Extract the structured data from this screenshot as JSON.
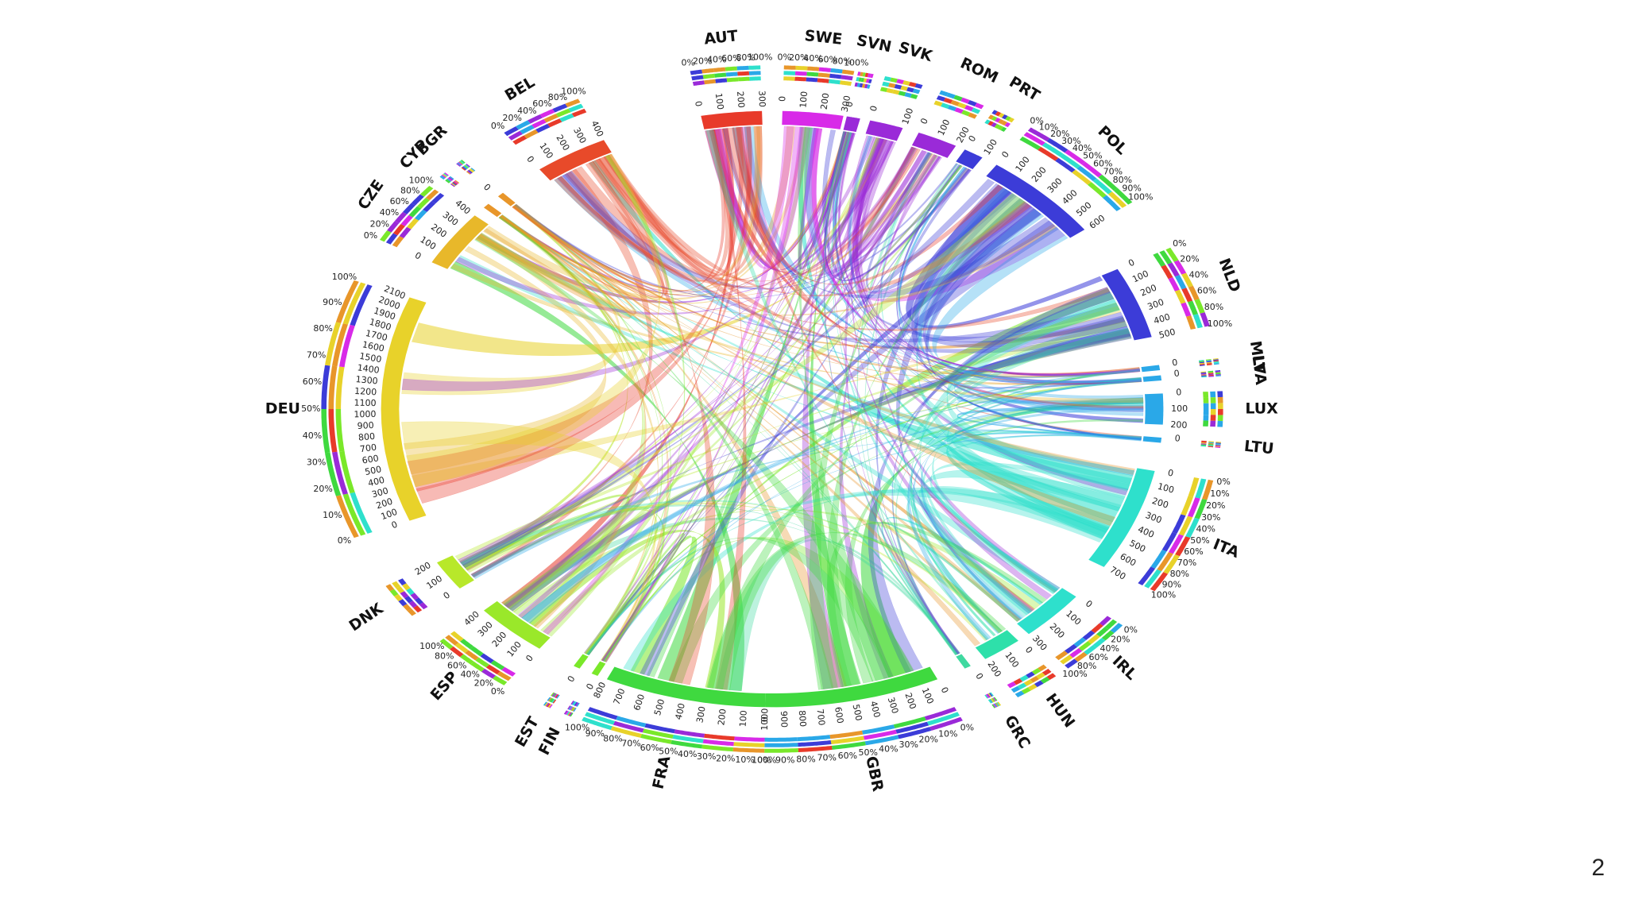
{
  "slide_number": "2",
  "palette": [
    "#e8d22a",
    "#3c3cd8",
    "#2ee0cc",
    "#3fd93f",
    "#e83a2a",
    "#9a2ad8",
    "#d82ae8",
    "#2aa8e8",
    "#7ae82a",
    "#e8962a"
  ],
  "chord_data": {
    "type": "chord",
    "groups": [
      {
        "name": "AUT",
        "ticks": [
          "0",
          "100",
          "200",
          "300"
        ],
        "color": "#e83a2a"
      },
      {
        "name": "SWE",
        "ticks": [
          "0",
          "100",
          "200",
          "300"
        ],
        "color": "#d82ae8"
      },
      {
        "name": "SVN",
        "ticks": [
          "0"
        ],
        "color": "#9a2ad8"
      },
      {
        "name": "SVK",
        "ticks": [
          "0",
          "100"
        ],
        "color": "#9a2ad8"
      },
      {
        "name": "ROM",
        "ticks": [
          "0",
          "100",
          "200"
        ],
        "color": "#9a2ad8"
      },
      {
        "name": "PRT",
        "ticks": [
          "0",
          "100"
        ],
        "color": "#3c3cd8"
      },
      {
        "name": "POL",
        "ticks": [
          "0",
          "100",
          "200",
          "300",
          "400",
          "500",
          "600"
        ],
        "color": "#3c3cd8"
      },
      {
        "name": "NLD",
        "ticks": [
          "0",
          "100",
          "200",
          "300",
          "400",
          "500"
        ],
        "color": "#3c3cd8"
      },
      {
        "name": "MLT",
        "ticks": [
          "0"
        ],
        "color": "#2aa8e8"
      },
      {
        "name": "LVA",
        "ticks": [
          "0"
        ],
        "color": "#2aa8e8"
      },
      {
        "name": "LUX",
        "ticks": [
          "0",
          "100",
          "200"
        ],
        "color": "#2aa8e8"
      },
      {
        "name": "LTU",
        "ticks": [
          "0"
        ],
        "color": "#2aa8e8"
      },
      {
        "name": "ITA",
        "ticks": [
          "0",
          "100",
          "200",
          "300",
          "400",
          "500",
          "600",
          "700"
        ],
        "color": "#2ee0cc"
      },
      {
        "name": "IRL",
        "ticks": [
          "0",
          "100",
          "200",
          "300"
        ],
        "color": "#2ee0cc"
      },
      {
        "name": "HUN",
        "ticks": [
          "0",
          "100",
          "200"
        ],
        "color": "#2ee0aa"
      },
      {
        "name": "GRC",
        "ticks": [
          "0"
        ],
        "color": "#3fd9a0"
      },
      {
        "name": "GBR",
        "ticks": [
          "0",
          "100",
          "200",
          "300",
          "400",
          "500",
          "600",
          "700",
          "800",
          "900",
          "1000"
        ],
        "color": "#3fd93f"
      },
      {
        "name": "FRA",
        "ticks": [
          "0",
          "100",
          "200",
          "300",
          "400",
          "500",
          "600",
          "700",
          "800"
        ],
        "color": "#3fd93f"
      },
      {
        "name": "FIN",
        "ticks": [
          "0"
        ],
        "color": "#7ae82a"
      },
      {
        "name": "EST",
        "ticks": [
          "0"
        ],
        "color": "#7ae82a"
      },
      {
        "name": "ESP",
        "ticks": [
          "0",
          "100",
          "200",
          "300",
          "400"
        ],
        "color": "#9ae82a"
      },
      {
        "name": "DNK",
        "ticks": [
          "0",
          "100",
          "200"
        ],
        "color": "#b8e82a"
      },
      {
        "name": "DEU",
        "ticks": [
          "0",
          "100",
          "200",
          "300",
          "400",
          "500",
          "600",
          "700",
          "800",
          "900",
          "1000",
          "1100",
          "1200",
          "1300",
          "1400",
          "1500",
          "1600",
          "1700",
          "1800",
          "1900",
          "2000",
          "2100"
        ],
        "color": "#e8d22a"
      },
      {
        "name": "CZE",
        "ticks": [
          "0",
          "100",
          "200",
          "300",
          "400"
        ],
        "color": "#e8b82a"
      },
      {
        "name": "CYP",
        "ticks": [],
        "color": "#e8962a"
      },
      {
        "name": "BGR",
        "ticks": [
          "0"
        ],
        "color": "#e8962a"
      },
      {
        "name": "BEL",
        "ticks": [
          "0",
          "100",
          "200",
          "300",
          "400"
        ],
        "color": "#e84a2a"
      }
    ],
    "percent_labels": [
      "0%",
      "10%",
      "20%",
      "30%",
      "40%",
      "50%",
      "60%",
      "70%",
      "80%",
      "90%",
      "100%"
    ]
  }
}
